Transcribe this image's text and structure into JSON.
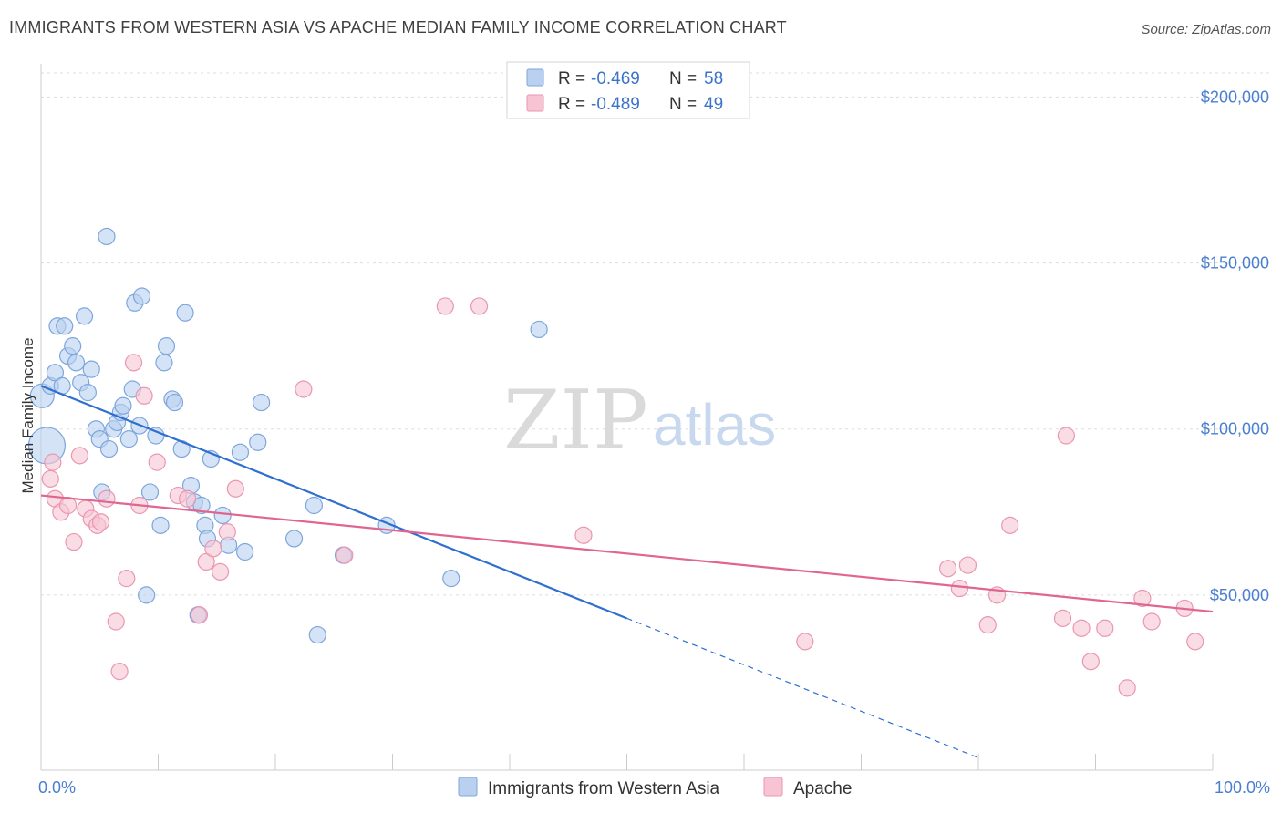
{
  "title": "IMMIGRANTS FROM WESTERN ASIA VS APACHE MEDIAN FAMILY INCOME CORRELATION CHART",
  "source": "Source: ZipAtlas.com",
  "watermark": {
    "zip": "ZIP",
    "atlas": "atlas"
  },
  "legend": {
    "r_label": "R =",
    "n_label": "N =",
    "rows": [
      {
        "r": "-0.469",
        "n": "58"
      },
      {
        "r": "-0.489",
        "n": "49"
      }
    ]
  },
  "colors": {
    "blue_fill": "#b9d0f0",
    "blue_stroke": "#7ea6dc",
    "blue_line": "#2f6fd1",
    "pink_fill": "#f7c4d4",
    "pink_stroke": "#ea96b2",
    "pink_line": "#e06590",
    "grid": "#dddddd",
    "axis_text": "#4a7fd0"
  },
  "chart_data": {
    "type": "scatter",
    "title": "IMMIGRANTS FROM WESTERN ASIA VS APACHE MEDIAN FAMILY INCOME CORRELATION CHART",
    "xlabel": "",
    "ylabel": "Median Family Income",
    "xlim": [
      0,
      100
    ],
    "ylim": [
      0,
      210000
    ],
    "x_tick_labels": [
      "0.0%",
      "100.0%"
    ],
    "y_ticks": [
      {
        "value": 50000,
        "label": "$50,000"
      },
      {
        "value": 100000,
        "label": "$100,000"
      },
      {
        "value": 150000,
        "label": "$150,000"
      },
      {
        "value": 200000,
        "label": "$200,000"
      }
    ],
    "grid": true,
    "legend_position": "top-center",
    "series": [
      {
        "name": "Immigrants from Western Asia",
        "color": "#b9d0f0",
        "trend": {
          "x0": 0,
          "y0": 113000,
          "x1": 50,
          "y1": 43000,
          "dashed_to_x": 80,
          "dashed_to_y": 1000
        },
        "points": [
          [
            0.1,
            110000
          ],
          [
            0.8,
            113000
          ],
          [
            1.2,
            117000
          ],
          [
            1.4,
            131000
          ],
          [
            1.8,
            113000
          ],
          [
            2.0,
            131000
          ],
          [
            2.3,
            122000
          ],
          [
            2.7,
            125000
          ],
          [
            3.0,
            120000
          ],
          [
            3.4,
            114000
          ],
          [
            3.7,
            134000
          ],
          [
            4.0,
            111000
          ],
          [
            4.3,
            118000
          ],
          [
            4.7,
            100000
          ],
          [
            5.0,
            97000
          ],
          [
            5.2,
            81000
          ],
          [
            5.6,
            158000
          ],
          [
            5.8,
            94000
          ],
          [
            6.2,
            100000
          ],
          [
            6.5,
            102000
          ],
          [
            6.8,
            105000
          ],
          [
            7.0,
            107000
          ],
          [
            7.5,
            97000
          ],
          [
            7.8,
            112000
          ],
          [
            8.0,
            138000
          ],
          [
            8.4,
            101000
          ],
          [
            8.6,
            140000
          ],
          [
            9.0,
            50000
          ],
          [
            9.3,
            81000
          ],
          [
            9.8,
            98000
          ],
          [
            10.2,
            71000
          ],
          [
            10.5,
            120000
          ],
          [
            10.7,
            125000
          ],
          [
            11.2,
            109000
          ],
          [
            11.4,
            108000
          ],
          [
            12.0,
            94000
          ],
          [
            12.3,
            135000
          ],
          [
            12.8,
            83000
          ],
          [
            13.1,
            78000
          ],
          [
            13.4,
            44000
          ],
          [
            13.7,
            77000
          ],
          [
            14.0,
            71000
          ],
          [
            14.2,
            67000
          ],
          [
            14.5,
            91000
          ],
          [
            15.5,
            74000
          ],
          [
            16.0,
            65000
          ],
          [
            17.0,
            93000
          ],
          [
            17.4,
            63000
          ],
          [
            18.5,
            96000
          ],
          [
            18.8,
            108000
          ],
          [
            21.6,
            67000
          ],
          [
            23.3,
            77000
          ],
          [
            23.6,
            38000
          ],
          [
            25.8,
            62000
          ],
          [
            29.5,
            71000
          ],
          [
            35.0,
            55000
          ],
          [
            42.5,
            130000
          ],
          [
            0.5,
            95000
          ]
        ]
      },
      {
        "name": "Apache",
        "color": "#f7c4d4",
        "trend": {
          "x0": 0,
          "y0": 80000,
          "x1": 100,
          "y1": 45000
        },
        "points": [
          [
            0.8,
            85000
          ],
          [
            1.2,
            79000
          ],
          [
            1.7,
            75000
          ],
          [
            2.3,
            77000
          ],
          [
            2.8,
            66000
          ],
          [
            3.3,
            92000
          ],
          [
            3.8,
            76000
          ],
          [
            4.3,
            73000
          ],
          [
            4.8,
            71000
          ],
          [
            5.1,
            72000
          ],
          [
            5.6,
            79000
          ],
          [
            6.4,
            42000
          ],
          [
            6.7,
            27000
          ],
          [
            7.3,
            55000
          ],
          [
            7.9,
            120000
          ],
          [
            8.4,
            77000
          ],
          [
            8.8,
            110000
          ],
          [
            9.9,
            90000
          ],
          [
            11.7,
            80000
          ],
          [
            12.5,
            79000
          ],
          [
            13.5,
            44000
          ],
          [
            14.1,
            60000
          ],
          [
            14.7,
            64000
          ],
          [
            15.3,
            57000
          ],
          [
            15.9,
            69000
          ],
          [
            16.6,
            82000
          ],
          [
            22.4,
            112000
          ],
          [
            25.9,
            62000
          ],
          [
            34.5,
            137000
          ],
          [
            37.4,
            137000
          ],
          [
            46.3,
            68000
          ],
          [
            65.2,
            36000
          ],
          [
            77.4,
            58000
          ],
          [
            78.4,
            52000
          ],
          [
            79.1,
            59000
          ],
          [
            80.8,
            41000
          ],
          [
            81.6,
            50000
          ],
          [
            82.7,
            71000
          ],
          [
            87.2,
            43000
          ],
          [
            87.5,
            98000
          ],
          [
            88.8,
            40000
          ],
          [
            89.6,
            30000
          ],
          [
            90.8,
            40000
          ],
          [
            92.7,
            22000
          ],
          [
            94.0,
            49000
          ],
          [
            94.8,
            42000
          ],
          [
            97.6,
            46000
          ],
          [
            98.5,
            36000
          ],
          [
            1.0,
            90000
          ]
        ]
      }
    ]
  },
  "bottom_legend": [
    {
      "label": "Immigrants from Western Asia"
    },
    {
      "label": "Apache"
    }
  ]
}
